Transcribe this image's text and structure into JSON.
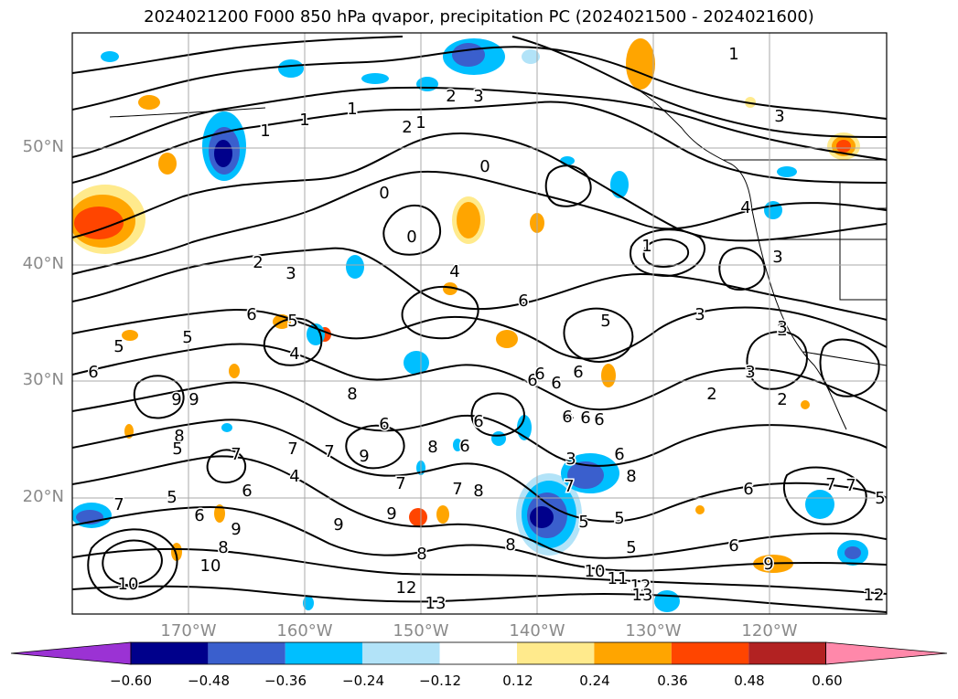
{
  "title": "2024021200 F000 850 hPa qvapor, precipitation PC (2024021500 - 2024021600)",
  "latitude_labels": [
    "50°N",
    "40°N",
    "30°N",
    "20°N"
  ],
  "longitude_labels": [
    "170°W",
    "160°W",
    "150°W",
    "140°W",
    "130°W",
    "120°W"
  ],
  "colorbar": {
    "colors": [
      "#9b32d4",
      "#00008b",
      "#3a5fcd",
      "#00bfff",
      "#b2e3f8",
      "#ffffff",
      "#ffea8c",
      "#ffa500",
      "#ff4500",
      "#b22222",
      "#ff88aa"
    ],
    "tick_labels": [
      "−0.60",
      "−0.48",
      "−0.36",
      "−0.24",
      "−0.12",
      "0.12",
      "0.24",
      "0.36",
      "0.48",
      "0.60"
    ]
  },
  "contour_labels": [
    "1",
    "1",
    "1",
    "1",
    "2",
    "3",
    "2",
    "1",
    "0",
    "0",
    "0",
    "6",
    "4",
    "3",
    "2",
    "3",
    "1",
    "6",
    "5",
    "4",
    "6",
    "5",
    "5",
    "6",
    "8",
    "7",
    "6",
    "6",
    "9",
    "8",
    "7",
    "9",
    "9",
    "8",
    "7",
    "8",
    "6",
    "5",
    "6",
    "7",
    "6",
    "5",
    "9",
    "9",
    "8",
    "10",
    "7",
    "6",
    "9",
    "10",
    "7",
    "8",
    "7",
    "5",
    "6",
    "8",
    "6",
    "6",
    "5",
    "5",
    "6",
    "4",
    "3",
    "2",
    "3",
    "2",
    "7",
    "6",
    "8",
    "12",
    "10",
    "11",
    "12",
    "13",
    "13",
    "5",
    "6",
    "9",
    "7",
    "6",
    "3",
    "2",
    "3",
    "4",
    "6",
    "5",
    "4",
    "3",
    "1",
    "12"
  ]
}
